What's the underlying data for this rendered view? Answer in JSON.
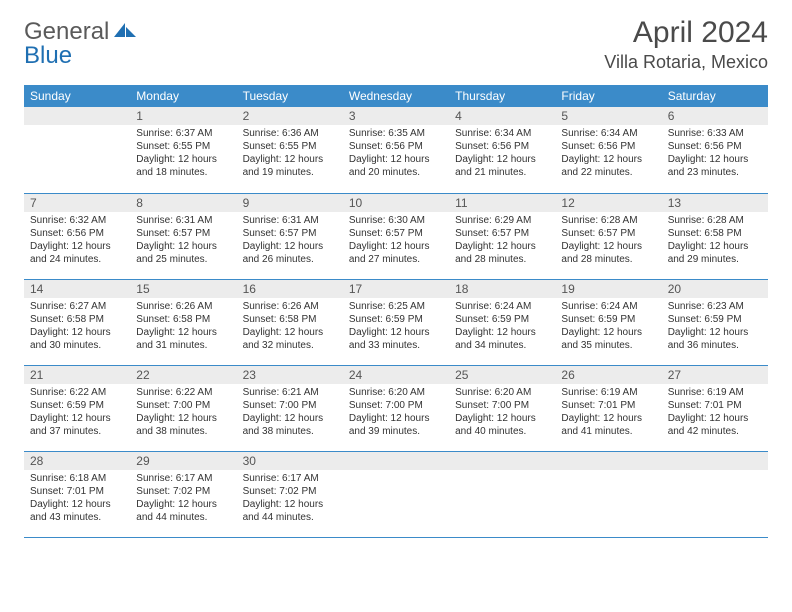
{
  "logo": {
    "word1": "General",
    "word2": "Blue"
  },
  "title": "April 2024",
  "location": "Villa Rotaria, Mexico",
  "colors": {
    "header_bg": "#3b8bc9",
    "header_text": "#ffffff",
    "daynum_bg": "#ececec",
    "daynum_text": "#555555",
    "border": "#3b8bc9",
    "body_text": "#333333",
    "logo_gray": "#5a5a5a",
    "logo_blue": "#1f6fb2"
  },
  "day_headers": [
    "Sunday",
    "Monday",
    "Tuesday",
    "Wednesday",
    "Thursday",
    "Friday",
    "Saturday"
  ],
  "weeks": [
    [
      null,
      {
        "n": "1",
        "sr": "Sunrise: 6:37 AM",
        "ss": "Sunset: 6:55 PM",
        "dl": "Daylight: 12 hours and 18 minutes."
      },
      {
        "n": "2",
        "sr": "Sunrise: 6:36 AM",
        "ss": "Sunset: 6:55 PM",
        "dl": "Daylight: 12 hours and 19 minutes."
      },
      {
        "n": "3",
        "sr": "Sunrise: 6:35 AM",
        "ss": "Sunset: 6:56 PM",
        "dl": "Daylight: 12 hours and 20 minutes."
      },
      {
        "n": "4",
        "sr": "Sunrise: 6:34 AM",
        "ss": "Sunset: 6:56 PM",
        "dl": "Daylight: 12 hours and 21 minutes."
      },
      {
        "n": "5",
        "sr": "Sunrise: 6:34 AM",
        "ss": "Sunset: 6:56 PM",
        "dl": "Daylight: 12 hours and 22 minutes."
      },
      {
        "n": "6",
        "sr": "Sunrise: 6:33 AM",
        "ss": "Sunset: 6:56 PM",
        "dl": "Daylight: 12 hours and 23 minutes."
      }
    ],
    [
      {
        "n": "7",
        "sr": "Sunrise: 6:32 AM",
        "ss": "Sunset: 6:56 PM",
        "dl": "Daylight: 12 hours and 24 minutes."
      },
      {
        "n": "8",
        "sr": "Sunrise: 6:31 AM",
        "ss": "Sunset: 6:57 PM",
        "dl": "Daylight: 12 hours and 25 minutes."
      },
      {
        "n": "9",
        "sr": "Sunrise: 6:31 AM",
        "ss": "Sunset: 6:57 PM",
        "dl": "Daylight: 12 hours and 26 minutes."
      },
      {
        "n": "10",
        "sr": "Sunrise: 6:30 AM",
        "ss": "Sunset: 6:57 PM",
        "dl": "Daylight: 12 hours and 27 minutes."
      },
      {
        "n": "11",
        "sr": "Sunrise: 6:29 AM",
        "ss": "Sunset: 6:57 PM",
        "dl": "Daylight: 12 hours and 28 minutes."
      },
      {
        "n": "12",
        "sr": "Sunrise: 6:28 AM",
        "ss": "Sunset: 6:57 PM",
        "dl": "Daylight: 12 hours and 28 minutes."
      },
      {
        "n": "13",
        "sr": "Sunrise: 6:28 AM",
        "ss": "Sunset: 6:58 PM",
        "dl": "Daylight: 12 hours and 29 minutes."
      }
    ],
    [
      {
        "n": "14",
        "sr": "Sunrise: 6:27 AM",
        "ss": "Sunset: 6:58 PM",
        "dl": "Daylight: 12 hours and 30 minutes."
      },
      {
        "n": "15",
        "sr": "Sunrise: 6:26 AM",
        "ss": "Sunset: 6:58 PM",
        "dl": "Daylight: 12 hours and 31 minutes."
      },
      {
        "n": "16",
        "sr": "Sunrise: 6:26 AM",
        "ss": "Sunset: 6:58 PM",
        "dl": "Daylight: 12 hours and 32 minutes."
      },
      {
        "n": "17",
        "sr": "Sunrise: 6:25 AM",
        "ss": "Sunset: 6:59 PM",
        "dl": "Daylight: 12 hours and 33 minutes."
      },
      {
        "n": "18",
        "sr": "Sunrise: 6:24 AM",
        "ss": "Sunset: 6:59 PM",
        "dl": "Daylight: 12 hours and 34 minutes."
      },
      {
        "n": "19",
        "sr": "Sunrise: 6:24 AM",
        "ss": "Sunset: 6:59 PM",
        "dl": "Daylight: 12 hours and 35 minutes."
      },
      {
        "n": "20",
        "sr": "Sunrise: 6:23 AM",
        "ss": "Sunset: 6:59 PM",
        "dl": "Daylight: 12 hours and 36 minutes."
      }
    ],
    [
      {
        "n": "21",
        "sr": "Sunrise: 6:22 AM",
        "ss": "Sunset: 6:59 PM",
        "dl": "Daylight: 12 hours and 37 minutes."
      },
      {
        "n": "22",
        "sr": "Sunrise: 6:22 AM",
        "ss": "Sunset: 7:00 PM",
        "dl": "Daylight: 12 hours and 38 minutes."
      },
      {
        "n": "23",
        "sr": "Sunrise: 6:21 AM",
        "ss": "Sunset: 7:00 PM",
        "dl": "Daylight: 12 hours and 38 minutes."
      },
      {
        "n": "24",
        "sr": "Sunrise: 6:20 AM",
        "ss": "Sunset: 7:00 PM",
        "dl": "Daylight: 12 hours and 39 minutes."
      },
      {
        "n": "25",
        "sr": "Sunrise: 6:20 AM",
        "ss": "Sunset: 7:00 PM",
        "dl": "Daylight: 12 hours and 40 minutes."
      },
      {
        "n": "26",
        "sr": "Sunrise: 6:19 AM",
        "ss": "Sunset: 7:01 PM",
        "dl": "Daylight: 12 hours and 41 minutes."
      },
      {
        "n": "27",
        "sr": "Sunrise: 6:19 AM",
        "ss": "Sunset: 7:01 PM",
        "dl": "Daylight: 12 hours and 42 minutes."
      }
    ],
    [
      {
        "n": "28",
        "sr": "Sunrise: 6:18 AM",
        "ss": "Sunset: 7:01 PM",
        "dl": "Daylight: 12 hours and 43 minutes."
      },
      {
        "n": "29",
        "sr": "Sunrise: 6:17 AM",
        "ss": "Sunset: 7:02 PM",
        "dl": "Daylight: 12 hours and 44 minutes."
      },
      {
        "n": "30",
        "sr": "Sunrise: 6:17 AM",
        "ss": "Sunset: 7:02 PM",
        "dl": "Daylight: 12 hours and 44 minutes."
      },
      null,
      null,
      null,
      null
    ]
  ]
}
